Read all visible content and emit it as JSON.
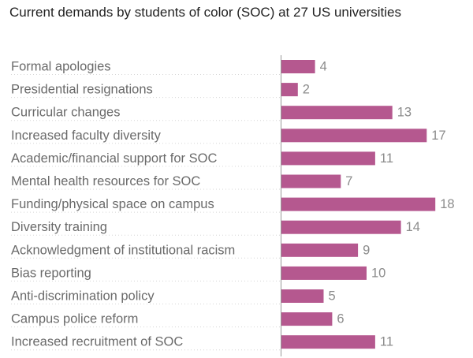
{
  "chart_data": {
    "type": "bar",
    "orientation": "horizontal",
    "title": "Current demands by students of color (SOC) at 27 US universities",
    "xlabel": "",
    "ylabel": "",
    "categories": [
      "Formal apologies",
      "Presidential resignations",
      "Curricular changes",
      "Increased faculty diversity",
      "Academic/financial support for SOC",
      "Mental health resources for SOC",
      "Funding/physical space on campus",
      "Diversity training",
      "Acknowledgment of institutional racism",
      "Bias reporting",
      "Anti-discrimination policy",
      "Campus police reform",
      "Increased recruitment of SOC"
    ],
    "values": [
      4,
      2,
      13,
      17,
      11,
      7,
      18,
      14,
      9,
      10,
      5,
      6,
      11
    ],
    "xlim": [
      0,
      18
    ],
    "grid": false,
    "legend": "none",
    "bar_color": "#b5588f"
  }
}
